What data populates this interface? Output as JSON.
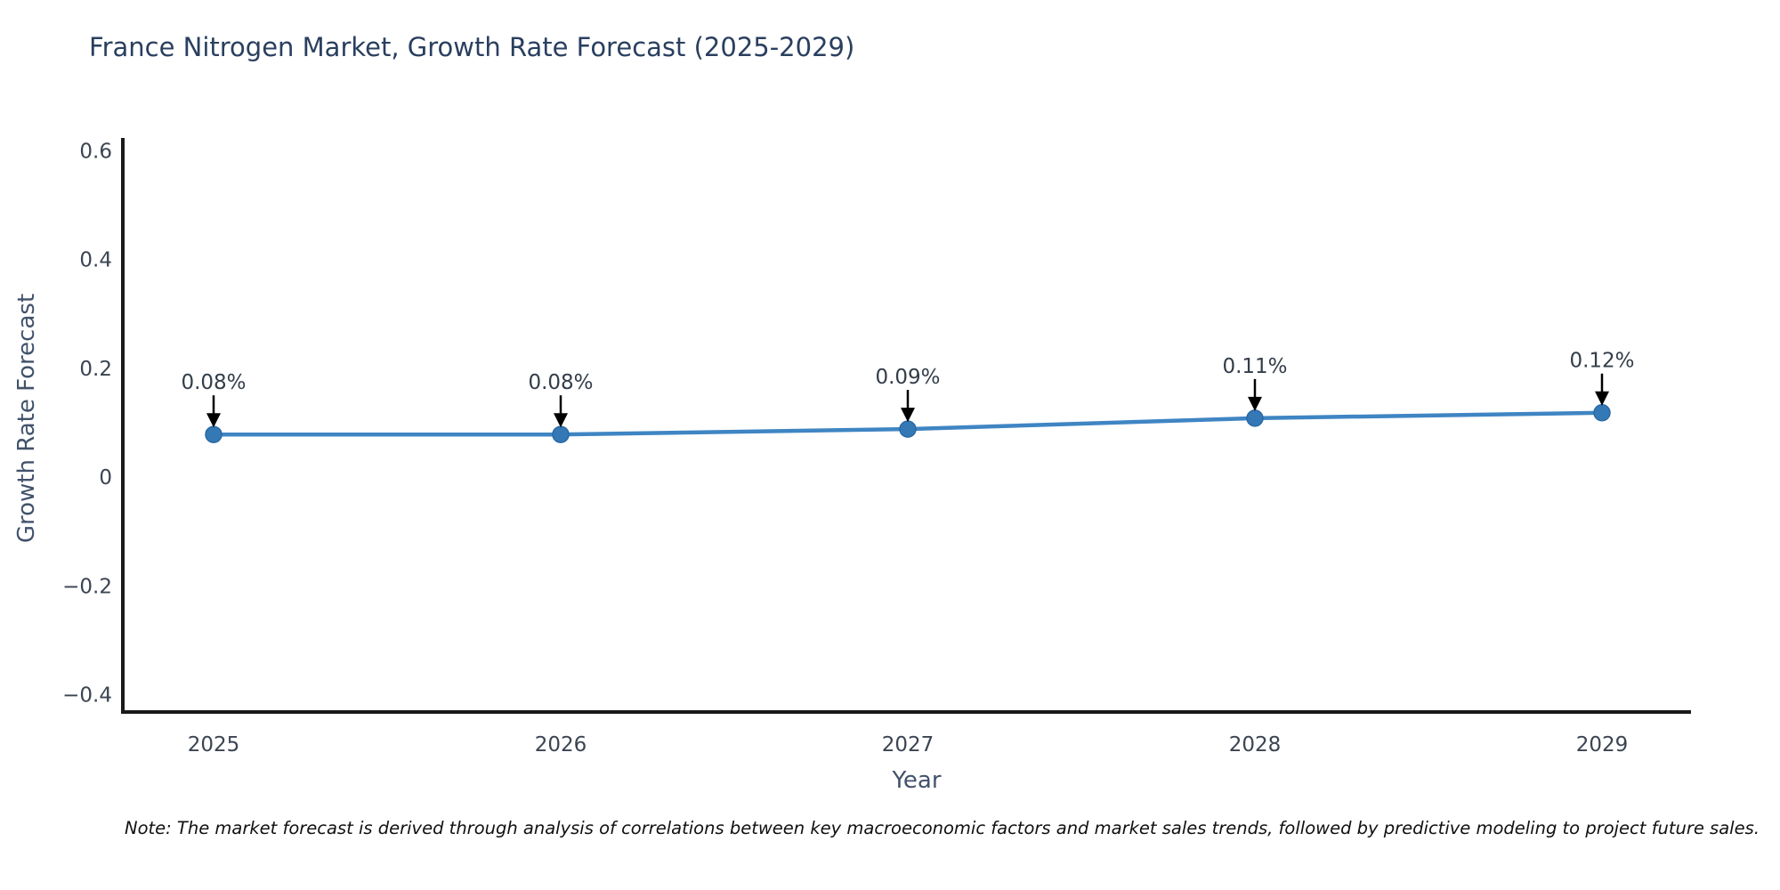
{
  "note": "Note: The market forecast is derived through analysis of correlations between key macroeconomic factors and market sales trends, followed by predictive modeling to project future sales.",
  "chart_data": {
    "type": "line",
    "title": "France Nitrogen Market, Growth Rate Forecast (2025-2029)",
    "xlabel": "Year",
    "ylabel": "Growth Rate Forecast",
    "x": [
      "2025",
      "2026",
      "2027",
      "2028",
      "2029"
    ],
    "values": [
      0.08,
      0.08,
      0.09,
      0.11,
      0.12
    ],
    "point_labels": [
      "0.08%",
      "0.08%",
      "0.09%",
      "0.11%",
      "0.12%"
    ],
    "yticks": [
      0.6,
      0.4,
      0.2,
      0,
      -0.2,
      -0.4
    ],
    "ytick_labels": [
      "0.6",
      "0.4",
      "0.2",
      "0",
      "−0.2",
      "−0.4"
    ],
    "ylim": [
      -0.43,
      0.625
    ],
    "grid": false,
    "legend": "none",
    "colors": {
      "line": "#3f85c3",
      "marker_fill": "#3478b6",
      "marker_edge": "#2a6aa5",
      "arrow": "#000000",
      "axis": "#1a1a1a",
      "tick_text": "#3b4452",
      "annotation_text": "#333d49",
      "title_text": "#2a3f5f",
      "axis_label_text": "#42526b"
    }
  }
}
